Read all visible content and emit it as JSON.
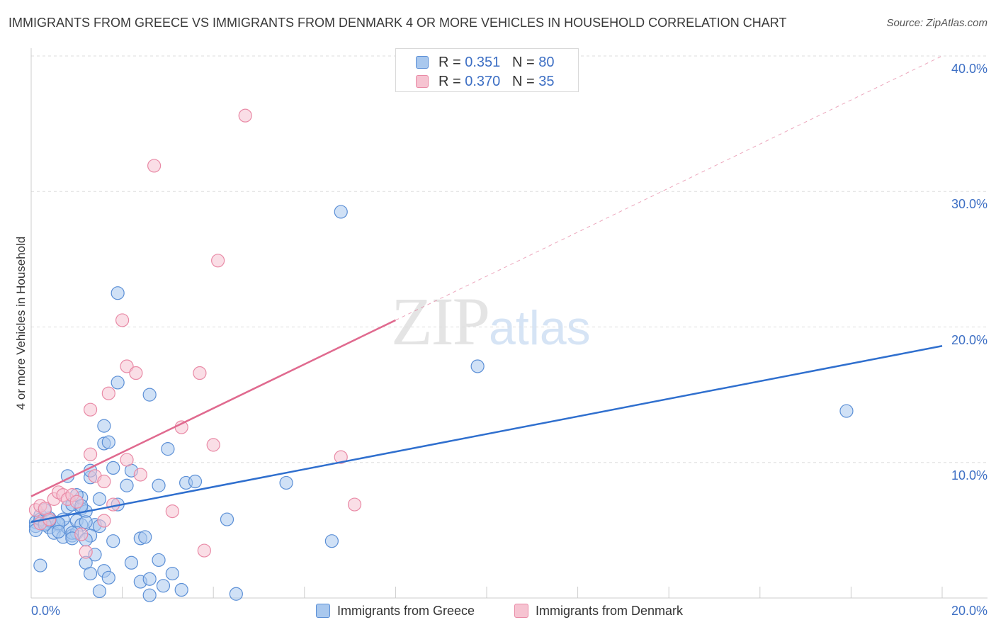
{
  "title": "IMMIGRANTS FROM GREECE VS IMMIGRANTS FROM DENMARK 4 OR MORE VEHICLES IN HOUSEHOLD CORRELATION CHART",
  "source": "Source: ZipAtlas.com",
  "watermark": {
    "zip": "ZIP",
    "atlas": "atlas"
  },
  "colors": {
    "greece_fill": "#a9c8ee",
    "greece_stroke": "#5b8fd6",
    "greece_line": "#2f6fce",
    "denmark_fill": "#f6c3d1",
    "denmark_stroke": "#e98aa6",
    "denmark_line": "#e06a8f",
    "axis_text": "#3d6fc4",
    "grid": "#dddddd"
  },
  "legend": {
    "rows": [
      {
        "r_label": "R = ",
        "r_value": "0.351",
        "n_label": "N = ",
        "n_value": "80"
      },
      {
        "r_label": "R = ",
        "r_value": "0.370",
        "n_label": "N = ",
        "n_value": "35"
      }
    ]
  },
  "bottom_legend": {
    "greece": "Immigrants from Greece",
    "denmark": "Immigrants from Denmark"
  },
  "chart_data": {
    "type": "scatter",
    "title": "IMMIGRANTS FROM GREECE VS IMMIGRANTS FROM DENMARK 4 OR MORE VEHICLES IN HOUSEHOLD CORRELATION CHART",
    "xlabel": "",
    "ylabel": "4 or more Vehicles in Household",
    "xlim": [
      0,
      20
    ],
    "ylim": [
      0,
      40
    ],
    "x_tick_labels": [
      "0.0%",
      "20.0%"
    ],
    "y_ticks": [
      10,
      20,
      30,
      40
    ],
    "y_tick_labels": [
      "10.0%",
      "20.0%",
      "30.0%",
      "40.0%"
    ],
    "grid": true,
    "series": [
      {
        "name": "Immigrants from Greece",
        "R": 0.351,
        "N": 80,
        "trend": {
          "x": [
            0,
            20
          ],
          "y": [
            5.6,
            18.6
          ],
          "dashed_extension": false
        },
        "points": [
          [
            0.1,
            5.6
          ],
          [
            0.2,
            6.1
          ],
          [
            0.1,
            5.3
          ],
          [
            0.2,
            5.8
          ],
          [
            0.3,
            5.5
          ],
          [
            0.1,
            5.0
          ],
          [
            0.4,
            5.9
          ],
          [
            0.3,
            6.5
          ],
          [
            0.5,
            5.6
          ],
          [
            0.6,
            5.4
          ],
          [
            0.4,
            5.2
          ],
          [
            0.5,
            4.8
          ],
          [
            0.7,
            4.5
          ],
          [
            0.8,
            5.2
          ],
          [
            0.9,
            4.6
          ],
          [
            0.7,
            5.8
          ],
          [
            0.8,
            6.7
          ],
          [
            0.9,
            6.9
          ],
          [
            1.0,
            5.7
          ],
          [
            1.1,
            6.6
          ],
          [
            1.2,
            6.4
          ],
          [
            1.1,
            7.4
          ],
          [
            1.0,
            7.6
          ],
          [
            1.3,
            8.9
          ],
          [
            1.3,
            9.4
          ],
          [
            0.8,
            9.0
          ],
          [
            1.5,
            7.3
          ],
          [
            1.4,
            5.4
          ],
          [
            1.5,
            5.3
          ],
          [
            1.9,
            6.9
          ],
          [
            1.8,
            9.6
          ],
          [
            2.1,
            8.3
          ],
          [
            2.2,
            9.4
          ],
          [
            1.6,
            11.4
          ],
          [
            1.7,
            11.5
          ],
          [
            1.6,
            12.7
          ],
          [
            1.9,
            15.9
          ],
          [
            1.9,
            22.5
          ],
          [
            2.6,
            15.0
          ],
          [
            2.8,
            8.3
          ],
          [
            3.0,
            11.0
          ],
          [
            3.4,
            8.5
          ],
          [
            3.6,
            8.6
          ],
          [
            4.3,
            5.8
          ],
          [
            5.6,
            8.5
          ],
          [
            6.6,
            4.2
          ],
          [
            6.8,
            28.5
          ],
          [
            9.8,
            17.1
          ],
          [
            17.9,
            13.8
          ],
          [
            1.1,
            5.4
          ],
          [
            1.3,
            4.6
          ],
          [
            1.8,
            4.2
          ],
          [
            2.4,
            4.4
          ],
          [
            2.5,
            4.5
          ],
          [
            2.2,
            2.6
          ],
          [
            2.8,
            2.8
          ],
          [
            3.1,
            1.8
          ],
          [
            1.4,
            3.2
          ],
          [
            1.6,
            2.0
          ],
          [
            1.7,
            1.5
          ],
          [
            2.4,
            1.2
          ],
          [
            2.6,
            1.4
          ],
          [
            2.9,
            0.9
          ],
          [
            3.3,
            0.6
          ],
          [
            1.5,
            0.5
          ],
          [
            4.5,
            0.3
          ],
          [
            0.2,
            2.4
          ],
          [
            1.2,
            2.6
          ],
          [
            1.3,
            1.8
          ],
          [
            2.6,
            0.2
          ],
          [
            1.0,
            4.8
          ],
          [
            1.2,
            4.3
          ],
          [
            0.6,
            5.5
          ],
          [
            0.4,
            5.7
          ],
          [
            0.3,
            5.4
          ],
          [
            0.9,
            4.8
          ],
          [
            1.1,
            6.8
          ],
          [
            1.2,
            5.6
          ],
          [
            0.9,
            4.4
          ],
          [
            0.6,
            4.9
          ]
        ]
      },
      {
        "name": "Immigrants from Denmark",
        "R": 0.37,
        "N": 35,
        "trend": {
          "x": [
            0,
            8
          ],
          "y": [
            7.5,
            20.5
          ],
          "dashed_extension": {
            "x": [
              8,
              20
            ],
            "y": [
              20.5,
              40.0
            ]
          }
        },
        "points": [
          [
            0.1,
            6.5
          ],
          [
            0.2,
            6.8
          ],
          [
            0.3,
            6.6
          ],
          [
            0.2,
            5.5
          ],
          [
            0.4,
            5.8
          ],
          [
            0.5,
            7.3
          ],
          [
            0.6,
            7.8
          ],
          [
            0.7,
            7.6
          ],
          [
            0.8,
            7.3
          ],
          [
            0.9,
            7.6
          ],
          [
            1.0,
            7.1
          ],
          [
            1.1,
            4.7
          ],
          [
            1.2,
            3.4
          ],
          [
            1.3,
            10.6
          ],
          [
            1.3,
            13.9
          ],
          [
            1.4,
            9.0
          ],
          [
            1.6,
            8.6
          ],
          [
            1.6,
            5.7
          ],
          [
            1.7,
            15.1
          ],
          [
            1.8,
            6.9
          ],
          [
            2.0,
            20.5
          ],
          [
            2.1,
            17.1
          ],
          [
            2.3,
            16.6
          ],
          [
            2.1,
            10.2
          ],
          [
            2.4,
            9.1
          ],
          [
            2.7,
            31.9
          ],
          [
            3.1,
            6.4
          ],
          [
            3.3,
            12.6
          ],
          [
            3.7,
            16.6
          ],
          [
            3.8,
            3.5
          ],
          [
            4.0,
            11.3
          ],
          [
            4.1,
            24.9
          ],
          [
            4.7,
            35.6
          ],
          [
            6.8,
            10.4
          ],
          [
            7.1,
            6.9
          ]
        ]
      }
    ]
  }
}
